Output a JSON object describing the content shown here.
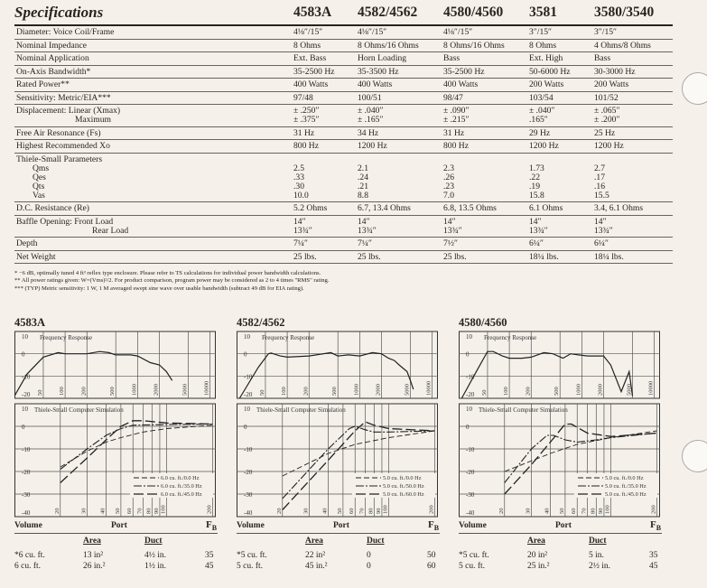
{
  "title": "Specifications",
  "models": [
    "4583A",
    "4582/4562",
    "4580/4560",
    "3581",
    "3580/3540"
  ],
  "rows": [
    {
      "label": [
        "Diameter: Voice Coil/Frame"
      ],
      "values": [
        [
          "4⅛″/15″"
        ],
        [
          "4⅛″/15″"
        ],
        [
          "4⅛″/15″"
        ],
        [
          "3″/15″"
        ],
        [
          "3″/15″"
        ]
      ]
    },
    {
      "label": [
        "Nominal Impedance"
      ],
      "values": [
        [
          "8 Ohms"
        ],
        [
          "8 Ohms/16 Ohms"
        ],
        [
          "8 Ohms/16 Ohms"
        ],
        [
          "8 Ohms"
        ],
        [
          "4 Ohms/8 Ohms"
        ]
      ]
    },
    {
      "label": [
        "Nominal Application"
      ],
      "values": [
        [
          "Ext. Bass"
        ],
        [
          "Horn Loading"
        ],
        [
          "Bass"
        ],
        [
          "Ext. High"
        ],
        [
          "Bass"
        ]
      ]
    },
    {
      "label": [
        "On-Axis Bandwidth*"
      ],
      "values": [
        [
          "35-2500 Hz"
        ],
        [
          "35-3500 Hz"
        ],
        [
          "35-2500 Hz"
        ],
        [
          "50-6000 Hz"
        ],
        [
          "30-3000 Hz"
        ]
      ]
    },
    {
      "label": [
        "Rated Power**"
      ],
      "values": [
        [
          "400 Watts"
        ],
        [
          "400 Watts"
        ],
        [
          "400 Watts"
        ],
        [
          "200 Watts"
        ],
        [
          "200 Watts"
        ]
      ]
    },
    {
      "label": [
        "Sensitivity: Metric/EIA***"
      ],
      "values": [
        [
          "97/48"
        ],
        [
          "100/51"
        ],
        [
          "98/47"
        ],
        [
          "103/54"
        ],
        [
          "101/52"
        ]
      ]
    },
    {
      "label": [
        "Displacement: Linear (Xmax)",
        "Maximum"
      ],
      "indent": [
        "",
        "ind2"
      ],
      "values": [
        [
          "± .250″",
          "± .375″"
        ],
        [
          "± .040″",
          "± .165″"
        ],
        [
          "± .090″",
          "± .215″"
        ],
        [
          "± .040″",
          ".165″"
        ],
        [
          "± .065″",
          "± .200″"
        ]
      ]
    },
    {
      "label": [
        "Free Air Resonance (Fs)"
      ],
      "values": [
        [
          "31 Hz"
        ],
        [
          "34 Hz"
        ],
        [
          "31 Hz"
        ],
        [
          "29 Hz"
        ],
        [
          "25 Hz"
        ]
      ]
    },
    {
      "label": [
        "Highest Recommended Xo"
      ],
      "values": [
        [
          "800 Hz"
        ],
        [
          "1200 Hz"
        ],
        [
          "800 Hz"
        ],
        [
          "1200 Hz"
        ],
        [
          "1200 Hz"
        ]
      ]
    },
    {
      "label": [
        "Thiele-Small Parameters",
        "Qms",
        "Qes",
        "Qts",
        "Vas"
      ],
      "indent": [
        "",
        "ind1",
        "ind1",
        "ind1",
        "ind1"
      ],
      "values": [
        [
          "",
          "2.5",
          ".33",
          ".30",
          "10.0"
        ],
        [
          "",
          "2.1",
          ".24",
          ".21",
          "8.8"
        ],
        [
          "",
          "2.3",
          ".26",
          ".23",
          "7.0"
        ],
        [
          "",
          "1.73",
          ".22",
          ".19",
          "15.8"
        ],
        [
          "",
          "2.7",
          ".17",
          ".16",
          "15.5"
        ]
      ]
    },
    {
      "label": [
        "D.C. Resistance (Re)"
      ],
      "values": [
        [
          "5.2 Ohms"
        ],
        [
          "6.7, 13.4 Ohms"
        ],
        [
          "6.8, 13.5 Ohms"
        ],
        [
          "6.1 Ohms"
        ],
        [
          "3.4, 6.1 Ohms"
        ]
      ]
    },
    {
      "label": [
        "Baffle Opening: Front Load",
        "Rear Load"
      ],
      "indent": [
        "",
        "ind3"
      ],
      "values": [
        [
          "14″",
          "13¾″"
        ],
        [
          "14″",
          "13¾″"
        ],
        [
          "14″",
          "13¾″"
        ],
        [
          "14″",
          "13¾″"
        ],
        [
          "14″",
          "13¾″"
        ]
      ]
    },
    {
      "label": [
        "Depth"
      ],
      "values": [
        [
          "7¼″"
        ],
        [
          "7¼″"
        ],
        [
          "7½″"
        ],
        [
          "6¼″"
        ],
        [
          "6¼″"
        ]
      ]
    },
    {
      "label": [
        "Net Weight"
      ],
      "values": [
        [
          "25 lbs."
        ],
        [
          "25 lbs."
        ],
        [
          "25 lbs."
        ],
        [
          "18¼ lbs."
        ],
        [
          "18¼ lbs."
        ]
      ]
    }
  ],
  "notes": [
    "* −6 dB, optimally tuned 4 ft³ reflex type enclosure.    Please refer to TS calculations for individual power bandwidth calculations.",
    "** All power ratings given: W=(Vms)²/2. For product comparison, program power may be considered as 2 to 4 times \"RMS\" rating.",
    "*** (TYP) Metric sensitivity: 1 W, 1 M averaged swept sine wave over usable bandwidth (subtract 49 dB for EIA rating)."
  ],
  "chart_data": [
    {
      "type": "line",
      "title": "4583A",
      "fr": {
        "title": "Frequency Response",
        "xscale": "log",
        "xlim": [
          20,
          12000
        ],
        "ylim": [
          -20,
          10
        ],
        "xticks": [
          50,
          100,
          200,
          500,
          1000,
          2000,
          5000,
          10000
        ],
        "yticks": [
          10,
          0,
          -10,
          -20
        ],
        "points": [
          [
            20,
            -19
          ],
          [
            30,
            -9
          ],
          [
            50,
            -1.5
          ],
          [
            80,
            0.5
          ],
          [
            100,
            0
          ],
          [
            200,
            0
          ],
          [
            300,
            1
          ],
          [
            400,
            0.5
          ],
          [
            500,
            -0.5
          ],
          [
            800,
            -0.5
          ],
          [
            1000,
            -1
          ],
          [
            1500,
            -4
          ],
          [
            2000,
            -5
          ],
          [
            2500,
            -8
          ],
          [
            3000,
            -12
          ]
        ]
      },
      "ts": {
        "title": "Thiele-Small Computer Simulation",
        "xscale": "log",
        "xlim": [
          10,
          210
        ],
        "ylim": [
          -40,
          10
        ],
        "xticks": [
          20,
          30,
          40,
          50,
          60,
          70,
          80,
          90,
          100,
          200
        ],
        "yticks": [
          10,
          0,
          -10,
          -20,
          -30,
          -40
        ],
        "series": [
          {
            "name": "6.0 cu. ft./0.0 Hz",
            "points": [
              [
                20,
                -18
              ],
              [
                30,
                -11
              ],
              [
                40,
                -7
              ],
              [
                50,
                -5
              ],
              [
                70,
                -2.5
              ],
              [
                100,
                -1
              ],
              [
                200,
                0.5
              ]
            ]
          },
          {
            "name": "6.0 cu. ft./35.0 Hz",
            "points": [
              [
                20,
                -19
              ],
              [
                30,
                -10
              ],
              [
                40,
                -4
              ],
              [
                50,
                -1
              ],
              [
                60,
                0.5
              ],
              [
                100,
                0.8
              ],
              [
                200,
                1
              ]
            ]
          },
          {
            "name": "6.0 cu. ft./45.0 Hz",
            "points": [
              [
                20,
                -25
              ],
              [
                30,
                -14
              ],
              [
                40,
                -6
              ],
              [
                50,
                0
              ],
              [
                60,
                2.5
              ],
              [
                70,
                2.5
              ],
              [
                100,
                1.5
              ],
              [
                200,
                1
              ]
            ]
          }
        ]
      }
    },
    {
      "type": "line",
      "title": "4582/4562",
      "fr": {
        "title": "Frequency Response",
        "xscale": "log",
        "xlim": [
          20,
          12000
        ],
        "ylim": [
          -20,
          10
        ],
        "xticks": [
          50,
          100,
          200,
          500,
          1000,
          2000,
          5000,
          10000
        ],
        "yticks": [
          10,
          0,
          -10,
          -20
        ],
        "points": [
          [
            22,
            -20
          ],
          [
            40,
            -6
          ],
          [
            55,
            0
          ],
          [
            60,
            0.3
          ],
          [
            80,
            -1
          ],
          [
            100,
            -1.5
          ],
          [
            200,
            -1
          ],
          [
            400,
            0.5
          ],
          [
            500,
            -1
          ],
          [
            700,
            -0.5
          ],
          [
            1000,
            -1
          ],
          [
            1500,
            0.5
          ],
          [
            2000,
            0
          ],
          [
            2500,
            -2
          ],
          [
            3000,
            -3
          ],
          [
            3500,
            -5
          ],
          [
            4500,
            -8
          ],
          [
            5000,
            -12
          ],
          [
            5500,
            -16
          ]
        ]
      },
      "ts": {
        "title": "Thiele-Small Computer Simulation",
        "xscale": "log",
        "xlim": [
          10,
          210
        ],
        "ylim": [
          -40,
          10
        ],
        "xticks": [
          20,
          30,
          40,
          50,
          60,
          70,
          80,
          90,
          100,
          200
        ],
        "yticks": [
          10,
          0,
          -10,
          -20,
          -30,
          -40
        ],
        "series": [
          {
            "name": "5.0 cu. ft./0.0 Hz",
            "points": [
              [
                20,
                -22
              ],
              [
                40,
                -12
              ],
              [
                60,
                -8
              ],
              [
                100,
                -5
              ],
              [
                200,
                -2
              ]
            ]
          },
          {
            "name": "5.0 cu. ft./50.0 Hz",
            "points": [
              [
                20,
                -32
              ],
              [
                40,
                -10
              ],
              [
                55,
                -1
              ],
              [
                60,
                0
              ],
              [
                70,
                -1.5
              ],
              [
                80,
                -2.5
              ],
              [
                100,
                -2.5
              ],
              [
                200,
                -2
              ]
            ]
          },
          {
            "name": "5.0 cu. ft./60.0 Hz",
            "points": [
              [
                20,
                -37
              ],
              [
                40,
                -15
              ],
              [
                60,
                -2
              ],
              [
                70,
                2
              ],
              [
                80,
                0.5
              ],
              [
                100,
                -1
              ],
              [
                200,
                -2
              ]
            ]
          }
        ]
      }
    },
    {
      "type": "line",
      "title": "4580/4560",
      "fr": {
        "title": "Frequency Response",
        "xscale": "log",
        "xlim": [
          20,
          12000
        ],
        "ylim": [
          -20,
          10
        ],
        "xticks": [
          50,
          100,
          200,
          500,
          1000,
          2000,
          5000,
          10000
        ],
        "yticks": [
          10,
          0,
          -10,
          -20
        ],
        "points": [
          [
            22,
            -20
          ],
          [
            35,
            -8
          ],
          [
            50,
            1
          ],
          [
            60,
            1
          ],
          [
            80,
            -1
          ],
          [
            100,
            -2
          ],
          [
            150,
            -2
          ],
          [
            200,
            -1.5
          ],
          [
            300,
            0.5
          ],
          [
            400,
            0
          ],
          [
            550,
            -2
          ],
          [
            700,
            0
          ],
          [
            900,
            -0.5
          ],
          [
            1200,
            -1
          ],
          [
            2000,
            -1
          ],
          [
            2500,
            -5
          ],
          [
            3500,
            -17
          ],
          [
            4500,
            -8
          ],
          [
            5000,
            -19
          ]
        ]
      },
      "ts": {
        "title": "Thiele-Small Computer Simulation",
        "xscale": "log",
        "xlim": [
          10,
          210
        ],
        "ylim": [
          -40,
          10
        ],
        "xticks": [
          20,
          30,
          40,
          50,
          60,
          70,
          80,
          90,
          100,
          200
        ],
        "yticks": [
          10,
          0,
          -10,
          -20,
          -30,
          -40
        ],
        "series": [
          {
            "name": "5.0 cu. ft./0.0 Hz",
            "points": [
              [
                20,
                -20
              ],
              [
                40,
                -12
              ],
              [
                60,
                -8
              ],
              [
                100,
                -5
              ],
              [
                200,
                -2
              ]
            ]
          },
          {
            "name": "5.0 cu. ft./35.0 Hz",
            "points": [
              [
                20,
                -25
              ],
              [
                30,
                -10
              ],
              [
                38,
                -4
              ],
              [
                42,
                -4
              ],
              [
                50,
                -6
              ],
              [
                60,
                -7
              ],
              [
                80,
                -6
              ],
              [
                100,
                -5
              ],
              [
                200,
                -3
              ]
            ]
          },
          {
            "name": "5.0 cu. ft./45.0 Hz",
            "points": [
              [
                20,
                -30
              ],
              [
                30,
                -17
              ],
              [
                40,
                -7
              ],
              [
                50,
                1
              ],
              [
                55,
                1
              ],
              [
                70,
                -3
              ],
              [
                100,
                -4.5
              ],
              [
                200,
                -3
              ]
            ]
          }
        ]
      }
    }
  ],
  "ports": {
    "headers": {
      "volume": "Volume",
      "port": "Port",
      "fb": "F",
      "fb_sub": "B",
      "area": "Area",
      "duct": "Duct"
    },
    "tables": [
      [
        [
          "*6 cu. ft.",
          "13 in²",
          "4½ in.",
          "35"
        ],
        [
          " 6 cu. ft.",
          "26 in.²",
          "1½ in.",
          "45"
        ]
      ],
      [
        [
          "*5 cu. ft.",
          "22 in²",
          "0",
          "50"
        ],
        [
          " 5 cu. ft.",
          "45 in.²",
          "0",
          "60"
        ]
      ],
      [
        [
          "*5 cu. ft.",
          "20 in²",
          "5 in.",
          "35"
        ],
        [
          " 5 cu. ft.",
          "25 in.²",
          "2½ in.",
          "45"
        ]
      ]
    ]
  }
}
